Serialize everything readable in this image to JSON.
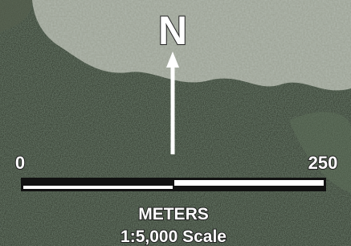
{
  "north_label": "N",
  "scale_bar": {
    "start_label": "0",
    "end_label": "250",
    "unit": "METERS",
    "scale": "1:5,000 Scale"
  }
}
